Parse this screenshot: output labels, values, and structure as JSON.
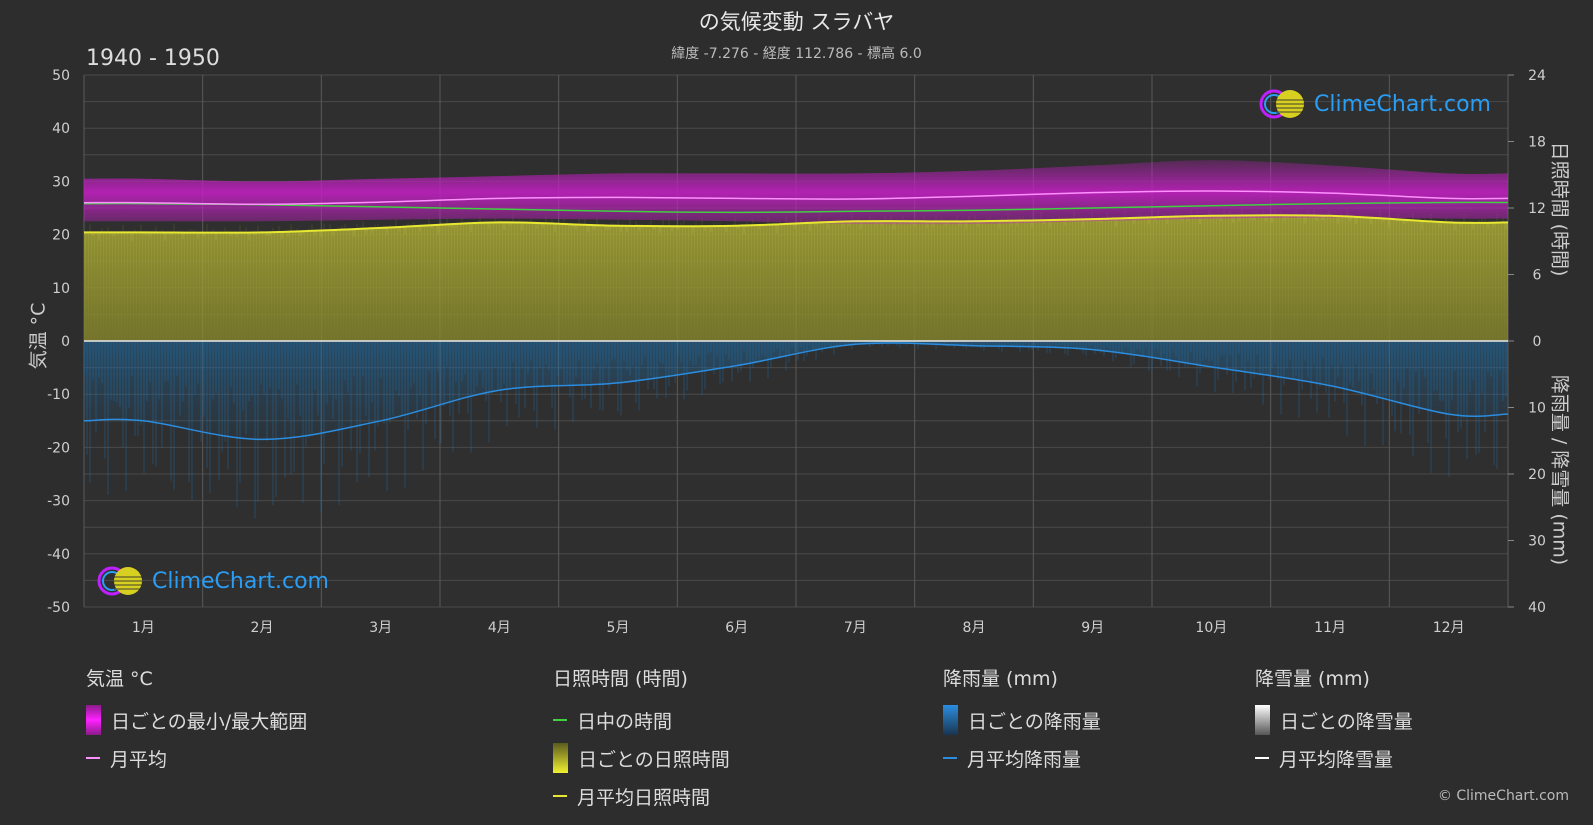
{
  "header": {
    "title": "の気候変動 スラバヤ",
    "subtitle": "緯度 -7.276 - 経度 112.786 - 標高 6.0",
    "period": "1940 - 1950"
  },
  "axes": {
    "left_label": "気温 °C",
    "right_top_label": "日照時間 (時間)",
    "right_bottom_label": "降雨量 / 降雪量 (mm)"
  },
  "logo_text": "ClimeChart.com",
  "copyright": "© ClimeChart.com",
  "legend": {
    "temp": {
      "title": "気温 °C",
      "items": [
        "日ごとの最小/最大範囲",
        "月平均"
      ]
    },
    "sun": {
      "title": "日照時間 (時間)",
      "items": [
        "日中の時間",
        "日ごとの日照時間",
        "月平均日照時間"
      ]
    },
    "rain": {
      "title": "降雨量 (mm)",
      "items": [
        "日ごとの降雨量",
        "月平均降雨量"
      ]
    },
    "snow": {
      "title": "降雪量 (mm)",
      "items": [
        "日ごとの降雪量",
        "月平均降雪量"
      ]
    }
  },
  "colors": {
    "background": "#2d2d2d",
    "temp_range": "#c020c0",
    "temp_mean": "#ff90ff",
    "daylight": "#40d040",
    "sunshine_fill": "#a8a832",
    "sunshine_mean": "#e8e830",
    "rain_fill": "#1f6fa8",
    "rain_mean": "#2a8de0",
    "snow_mean": "#ffffff"
  },
  "chart_data": {
    "type": "area",
    "categories": [
      "1月",
      "2月",
      "3月",
      "4月",
      "5月",
      "6月",
      "7月",
      "8月",
      "9月",
      "10月",
      "11月",
      "12月"
    ],
    "left_axis": {
      "label": "気温 °C",
      "ylim": [
        -50,
        50
      ],
      "ticks": [
        50,
        40,
        30,
        20,
        10,
        0,
        -10,
        -20,
        -30,
        -40,
        -50
      ]
    },
    "right_axis_sunshine": {
      "label": "日照時間 (時間)",
      "ylim": [
        0,
        24
      ],
      "ticks": [
        24,
        18,
        12,
        6,
        0
      ]
    },
    "right_axis_precip": {
      "label": "降雨量 / 降雪量 (mm)",
      "ylim": [
        0,
        40
      ],
      "ticks": [
        0,
        10,
        20,
        30,
        40
      ]
    },
    "series": [
      {
        "name": "月平均",
        "unit": "°C",
        "values": [
          26.0,
          25.7,
          26.1,
          26.8,
          27.0,
          26.8,
          26.7,
          27.2,
          27.9,
          28.2,
          27.8,
          26.8
        ]
      },
      {
        "name": "日ごとの最小/最大範囲 (最小)",
        "unit": "°C",
        "values": [
          22.5,
          22.5,
          22.8,
          23.0,
          22.8,
          22.5,
          22.0,
          22.0,
          22.5,
          23.0,
          23.2,
          23.0
        ]
      },
      {
        "name": "日ごとの最小/最大範囲 (最大)",
        "unit": "°C",
        "values": [
          30.5,
          30.0,
          30.5,
          31.0,
          31.5,
          31.5,
          31.5,
          32.0,
          33.0,
          34.0,
          33.0,
          31.5
        ]
      },
      {
        "name": "日中の時間",
        "unit": "時間",
        "values": [
          12.4,
          12.3,
          12.1,
          11.9,
          11.7,
          11.6,
          11.7,
          11.8,
          12.0,
          12.2,
          12.4,
          12.5
        ]
      },
      {
        "name": "月平均日照時間",
        "unit": "時間",
        "values": [
          9.8,
          9.8,
          10.2,
          10.7,
          10.4,
          10.4,
          10.8,
          10.8,
          11.0,
          11.3,
          11.3,
          10.7
        ]
      },
      {
        "name": "月平均降雨量",
        "unit": "mm",
        "values": [
          12.0,
          14.8,
          12.0,
          7.4,
          6.3,
          3.7,
          0.5,
          0.7,
          1.3,
          3.9,
          6.7,
          11.0
        ]
      },
      {
        "name": "月平均降雪量",
        "unit": "mm",
        "values": [
          0,
          0,
          0,
          0,
          0,
          0,
          0,
          0,
          0,
          0,
          0,
          0
        ]
      }
    ]
  }
}
